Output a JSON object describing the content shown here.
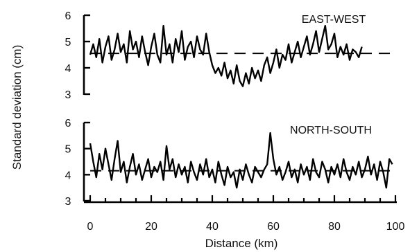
{
  "chart_data": {
    "type": "line",
    "ylabel": "Standard deviation (cm)",
    "xlabel": "Distance (km)",
    "xlim": [
      0,
      100
    ],
    "xticks": [
      "0",
      "20",
      "40",
      "60",
      "80",
      "100"
    ],
    "grid": false,
    "panels": [
      {
        "title": "EAST-WEST",
        "ylim": [
          3,
          6
        ],
        "yticks": [
          "3",
          "4",
          "5",
          "6"
        ],
        "reference_line": 4.55,
        "series": [
          {
            "x": [
              0,
              1,
              2,
              3,
              4,
              5,
              6,
              7,
              8,
              9,
              10,
              11,
              12,
              13,
              14,
              15,
              16,
              17,
              18,
              19,
              20,
              21,
              22,
              23,
              24,
              25,
              26,
              27,
              28,
              29,
              30,
              31,
              32,
              33,
              34,
              35,
              36,
              37,
              38,
              39,
              40,
              41,
              42,
              43,
              44,
              45,
              46,
              47,
              48,
              49,
              50,
              51,
              52,
              53,
              54,
              55,
              56,
              57,
              58,
              59,
              60,
              61,
              62,
              63,
              64,
              65,
              66,
              67,
              68,
              69,
              70,
              71,
              72,
              73,
              74,
              75,
              76,
              77,
              78,
              79,
              80,
              81,
              82,
              83,
              84,
              85,
              86,
              87,
              88,
              89
            ],
            "y": [
              4.5,
              4.9,
              4.4,
              5.1,
              4.2,
              4.8,
              5.2,
              4.3,
              4.7,
              5.3,
              4.6,
              4.9,
              4.2,
              5.4,
              4.7,
              5.0,
              4.4,
              5.2,
              4.6,
              4.1,
              4.8,
              5.3,
              4.5,
              4.2,
              5.6,
              4.5,
              4.9,
              4.2,
              5.1,
              4.6,
              5.4,
              4.3,
              4.8,
              5.0,
              4.4,
              5.2,
              4.7,
              4.5,
              5.3,
              4.6,
              4.1,
              3.8,
              4.0,
              3.7,
              4.2,
              3.6,
              3.9,
              3.4,
              4.1,
              3.5,
              3.3,
              3.8,
              3.4,
              4.0,
              3.6,
              3.9,
              3.5,
              4.1,
              4.4,
              3.8,
              4.2,
              4.7,
              4.0,
              4.5,
              4.3,
              4.9,
              4.2,
              4.6,
              5.0,
              4.4,
              4.8,
              5.2,
              4.5,
              4.9,
              5.4,
              4.6,
              5.1,
              5.6,
              4.7,
              4.9,
              5.3,
              4.4,
              4.8,
              4.5,
              4.9,
              4.3,
              4.7,
              4.6,
              4.4,
              4.8
            ]
          }
        ]
      },
      {
        "title": "NORTH-SOUTH",
        "ylim": [
          3,
          6
        ],
        "yticks": [
          "3",
          "4",
          "5",
          "6"
        ],
        "reference_line": 4.15,
        "series": [
          {
            "x": [
              0,
              1,
              2,
              3,
              4,
              5,
              6,
              7,
              8,
              9,
              10,
              11,
              12,
              13,
              14,
              15,
              16,
              17,
              18,
              19,
              20,
              21,
              22,
              23,
              24,
              25,
              26,
              27,
              28,
              29,
              30,
              31,
              32,
              33,
              34,
              35,
              36,
              37,
              38,
              39,
              40,
              41,
              42,
              43,
              44,
              45,
              46,
              47,
              48,
              49,
              50,
              51,
              52,
              53,
              54,
              55,
              56,
              57,
              58,
              59,
              60,
              61,
              62,
              63,
              64,
              65,
              66,
              67,
              68,
              69,
              70,
              71,
              72,
              73,
              74,
              75,
              76,
              77,
              78,
              79,
              80,
              81,
              82,
              83,
              84,
              85,
              86,
              87,
              88,
              89,
              90,
              91,
              92,
              93,
              94,
              95,
              96,
              97,
              98,
              99
            ],
            "y": [
              5.2,
              4.5,
              3.9,
              4.8,
              4.2,
              5.0,
              4.4,
              3.8,
              4.6,
              5.3,
              4.1,
              4.5,
              3.7,
              4.3,
              4.8,
              4.0,
              4.4,
              3.8,
              4.2,
              4.6,
              3.9,
              4.3,
              4.1,
              4.5,
              3.8,
              5.1,
              4.2,
              4.6,
              3.9,
              4.4,
              4.0,
              4.3,
              3.7,
              4.5,
              4.1,
              3.8,
              4.4,
              4.0,
              4.6,
              3.9,
              4.2,
              3.7,
              4.5,
              4.0,
              3.6,
              4.3,
              3.9,
              4.1,
              3.5,
              4.2,
              3.8,
              4.4,
              4.0,
              3.7,
              4.3,
              4.1,
              3.9,
              4.2,
              4.4,
              5.6,
              4.6,
              4.0,
              4.3,
              3.8,
              4.1,
              4.5,
              3.9,
              4.2,
              3.7,
              4.4,
              4.0,
              4.3,
              3.8,
              4.6,
              4.1,
              3.9,
              4.5,
              4.2,
              3.7,
              4.3,
              4.0,
              4.4,
              3.9,
              4.6,
              4.1,
              3.8,
              4.3,
              4.0,
              4.5,
              3.9,
              4.2,
              4.7,
              4.0,
              4.4,
              3.8,
              4.5,
              4.1,
              3.5,
              4.6,
              4.4
            ]
          }
        ]
      }
    ]
  }
}
